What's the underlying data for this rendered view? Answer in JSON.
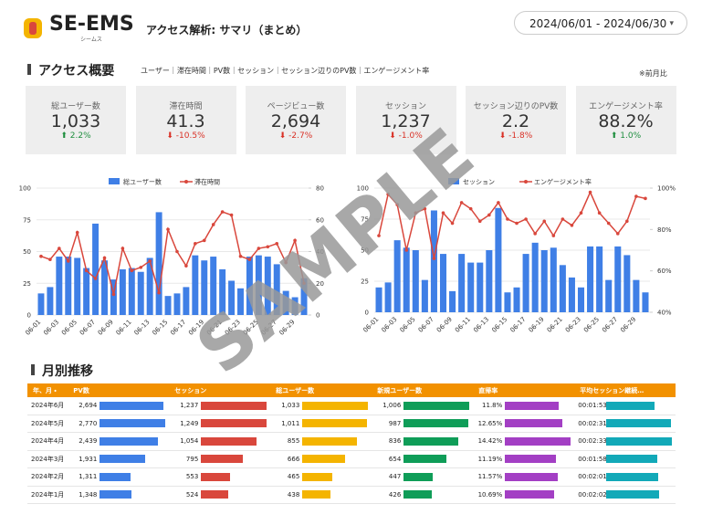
{
  "header": {
    "logo": "SE-EMS",
    "logo_sub": "シームス",
    "title": "アクセス解析: サマリ（まとめ）",
    "date_range": "2024/06/01 - 2024/06/30"
  },
  "overview": {
    "title": "アクセス概要",
    "nav": "ユーザー｜滞在時間｜PV数｜セッション｜セッション辺りのPV数｜エンゲージメント率",
    "note": "※前月比",
    "kpis": [
      {
        "label": "総ユーザー数",
        "value": "1,033",
        "change": "2.2%",
        "trend": "up"
      },
      {
        "label": "滞在時間",
        "value": "41.3",
        "change": "-10.5%",
        "trend": "down"
      },
      {
        "label": "ページビュー数",
        "value": "2,694",
        "change": "-2.7%",
        "trend": "down"
      },
      {
        "label": "セッション",
        "value": "1,237",
        "change": "-1.0%",
        "trend": "down"
      },
      {
        "label": "セッション辺りのPV数",
        "value": "2.2",
        "change": "-1.8%",
        "trend": "down"
      },
      {
        "label": "エンゲージメント率",
        "value": "88.2%",
        "change": "1.0%",
        "trend": "up"
      }
    ]
  },
  "chart_data": [
    {
      "type": "bar_line",
      "categories": [
        "06-01",
        null,
        "06-03",
        null,
        "06-05",
        null,
        "06-07",
        null,
        "06-09",
        null,
        "06-11",
        null,
        "06-13",
        null,
        "06-15",
        null,
        "06-17",
        null,
        "06-19",
        null,
        "06-21",
        null,
        "06-23",
        null,
        "06-25",
        null,
        "06-27",
        null,
        "06-29",
        null
      ],
      "series": [
        {
          "name": "総ユーザー数",
          "type": "bar",
          "color": "#3f7fe6",
          "values": [
            17,
            22,
            46,
            46,
            45,
            37,
            72,
            43,
            28,
            36,
            37,
            34,
            45,
            81,
            15,
            17,
            22,
            47,
            43,
            46,
            36,
            27,
            21,
            46,
            47,
            46,
            40,
            19,
            14,
            29
          ]
        },
        {
          "name": "滞在時間",
          "type": "line",
          "axis": "y2",
          "color": "#d9473c",
          "values": [
            37,
            35,
            42,
            34,
            52,
            28,
            23,
            36,
            13,
            42,
            28,
            30,
            34,
            14,
            54,
            40,
            31,
            45,
            47,
            57,
            65,
            63,
            37,
            35,
            42,
            43,
            45,
            33,
            47,
            20
          ]
        }
      ],
      "ylim": [
        0,
        100
      ],
      "yticks": [
        0,
        25,
        50,
        75,
        100
      ],
      "y2lim": [
        0,
        80
      ],
      "y2ticks": [
        0,
        20,
        40,
        60,
        80
      ],
      "grid": true
    },
    {
      "type": "bar_line",
      "categories": [
        "06-01",
        null,
        "06-03",
        null,
        "06-05",
        null,
        "06-07",
        null,
        "06-09",
        null,
        "06-11",
        null,
        "06-13",
        null,
        "06-15",
        null,
        "06-17",
        null,
        "06-19",
        null,
        "06-21",
        null,
        "06-23",
        null,
        "06-25",
        null,
        "06-27",
        null,
        "06-29",
        null
      ],
      "series": [
        {
          "name": "セッション",
          "type": "bar",
          "color": "#3f7fe6",
          "values": [
            20,
            24,
            58,
            52,
            50,
            26,
            82,
            47,
            17,
            47,
            40,
            40,
            50,
            84,
            16,
            20,
            47,
            56,
            50,
            52,
            38,
            28,
            20,
            53,
            53,
            26,
            53,
            46,
            26,
            16
          ]
        },
        {
          "name": "エンゲージメント率",
          "type": "line",
          "axis": "y2",
          "color": "#d9473c",
          "values": [
            77,
            97,
            92,
            70,
            88,
            90,
            66,
            88,
            83,
            93,
            90,
            84,
            87,
            93,
            85,
            83,
            85,
            78,
            84,
            77,
            85,
            82,
            88,
            98,
            88,
            83,
            78,
            84,
            96,
            95
          ]
        }
      ],
      "ylim": [
        0,
        100
      ],
      "yticks": [
        0,
        25,
        50,
        75,
        100
      ],
      "y2lim": [
        40,
        100
      ],
      "y2ticks": [
        {
          "value": 40,
          "label": "40%"
        },
        {
          "value": 60,
          "label": "60%"
        },
        {
          "value": 80,
          "label": "80%"
        },
        {
          "value": 100,
          "label": "100%"
        }
      ],
      "grid": true
    }
  ],
  "monthly": {
    "title": "月別推移",
    "table": {
      "headers": [
        "年、月 ・",
        "PV数",
        "セッション",
        "総ユーザー数",
        "新規ユーザー数",
        "直帰率",
        "平均セッション継続…"
      ],
      "colors": [
        null,
        "#3f7fe6",
        "#d9473c",
        "#f4b400",
        "#0f9d58",
        "#a33fc4",
        "#12a9b8"
      ],
      "rows": [
        [
          "2024年6月",
          {
            "value": 2694,
            "label": "2,694"
          },
          {
            "value": 1237,
            "label": "1,237"
          },
          {
            "value": 1033,
            "label": "1,033"
          },
          {
            "value": 1006,
            "label": "1,006"
          },
          {
            "value": 11.8,
            "label": "11.8%"
          },
          {
            "value": 113,
            "label": "00:01:53"
          }
        ],
        [
          "2024年5月",
          {
            "value": 2770,
            "label": "2,770"
          },
          {
            "value": 1249,
            "label": "1,249"
          },
          {
            "value": 1011,
            "label": "1,011"
          },
          {
            "value": 987,
            "label": "987"
          },
          {
            "value": 12.65,
            "label": "12.65%"
          },
          {
            "value": 151,
            "label": "00:02:31"
          }
        ],
        [
          "2024年4月",
          {
            "value": 2439,
            "label": "2,439"
          },
          {
            "value": 1054,
            "label": "1,054"
          },
          {
            "value": 855,
            "label": "855"
          },
          {
            "value": 836,
            "label": "836"
          },
          {
            "value": 14.42,
            "label": "14.42%"
          },
          {
            "value": 153,
            "label": "00:02:33"
          }
        ],
        [
          "2024年3月",
          {
            "value": 1931,
            "label": "1,931"
          },
          {
            "value": 795,
            "label": "795"
          },
          {
            "value": 666,
            "label": "666"
          },
          {
            "value": 654,
            "label": "654"
          },
          {
            "value": 11.19,
            "label": "11.19%"
          },
          {
            "value": 118,
            "label": "00:01:58"
          }
        ],
        [
          "2024年2月",
          {
            "value": 1311,
            "label": "1,311"
          },
          {
            "value": 553,
            "label": "553"
          },
          {
            "value": 465,
            "label": "465"
          },
          {
            "value": 447,
            "label": "447"
          },
          {
            "value": 11.57,
            "label": "11.57%"
          },
          {
            "value": 121,
            "label": "00:02:01"
          }
        ],
        [
          "2024年1月",
          {
            "value": 1348,
            "label": "1,348"
          },
          {
            "value": 524,
            "label": "524"
          },
          {
            "value": 438,
            "label": "438"
          },
          {
            "value": 426,
            "label": "426"
          },
          {
            "value": 10.69,
            "label": "10.69%"
          },
          {
            "value": 122,
            "label": "00:02:02"
          }
        ]
      ]
    }
  },
  "watermark": "SAMPLE"
}
